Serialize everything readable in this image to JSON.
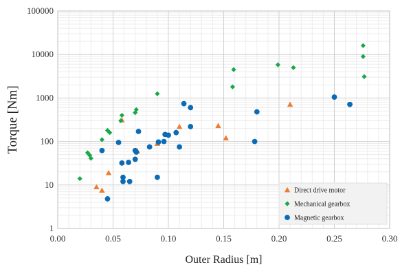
{
  "chart_data": {
    "type": "scatter",
    "title": "",
    "xlabel": "Outer Radius [m]",
    "ylabel": "Torque  [Nm]",
    "xlim": [
      0,
      0.3
    ],
    "ylim": [
      1,
      100000
    ],
    "y_scale": "log",
    "grid": true,
    "legend_position": "bottom-right",
    "x_ticks": [
      "0.00",
      "0.05",
      "0.10",
      "0.15",
      "0.20",
      "0.25",
      "0.30"
    ],
    "y_ticks": [
      "1",
      "10",
      "100",
      "1000",
      "10000",
      "100000"
    ],
    "series": [
      {
        "name": "Direct drive motor",
        "marker": "triangle",
        "color": "#ed7d31",
        "points": [
          [
            0.035,
            9
          ],
          [
            0.04,
            7.5
          ],
          [
            0.046,
            19
          ],
          [
            0.058,
            310
          ],
          [
            0.072,
            60
          ],
          [
            0.09,
            90
          ],
          [
            0.11,
            220
          ],
          [
            0.145,
            230
          ],
          [
            0.152,
            120
          ],
          [
            0.21,
            710
          ]
        ]
      },
      {
        "name": "Mechanical gearbox",
        "marker": "diamond",
        "color": "#18a84a",
        "points": [
          [
            0.02,
            14
          ],
          [
            0.027,
            55
          ],
          [
            0.029,
            48
          ],
          [
            0.03,
            41
          ],
          [
            0.04,
            110
          ],
          [
            0.045,
            180
          ],
          [
            0.047,
            160
          ],
          [
            0.057,
            300
          ],
          [
            0.058,
            400
          ],
          [
            0.07,
            460
          ],
          [
            0.071,
            540
          ],
          [
            0.09,
            1250
          ],
          [
            0.158,
            1800
          ],
          [
            0.159,
            4500
          ],
          [
            0.199,
            5800
          ],
          [
            0.213,
            5000
          ],
          [
            0.276,
            16000
          ],
          [
            0.276,
            9000
          ],
          [
            0.277,
            3100
          ]
        ]
      },
      {
        "name": "Magnetic gearbox",
        "marker": "circle",
        "color": "#0b6bb5",
        "points": [
          [
            0.04,
            62
          ],
          [
            0.045,
            4.8
          ],
          [
            0.055,
            95
          ],
          [
            0.058,
            32
          ],
          [
            0.059,
            15
          ],
          [
            0.059,
            12
          ],
          [
            0.064,
            33
          ],
          [
            0.065,
            12
          ],
          [
            0.07,
            62
          ],
          [
            0.07,
            39
          ],
          [
            0.071,
            57
          ],
          [
            0.073,
            170
          ],
          [
            0.083,
            75
          ],
          [
            0.09,
            15
          ],
          [
            0.091,
            97
          ],
          [
            0.096,
            100
          ],
          [
            0.097,
            145
          ],
          [
            0.1,
            140
          ],
          [
            0.107,
            160
          ],
          [
            0.11,
            75
          ],
          [
            0.114,
            740
          ],
          [
            0.12,
            600
          ],
          [
            0.12,
            220
          ],
          [
            0.178,
            100
          ],
          [
            0.18,
            480
          ],
          [
            0.25,
            1050
          ],
          [
            0.264,
            710
          ]
        ]
      }
    ]
  }
}
